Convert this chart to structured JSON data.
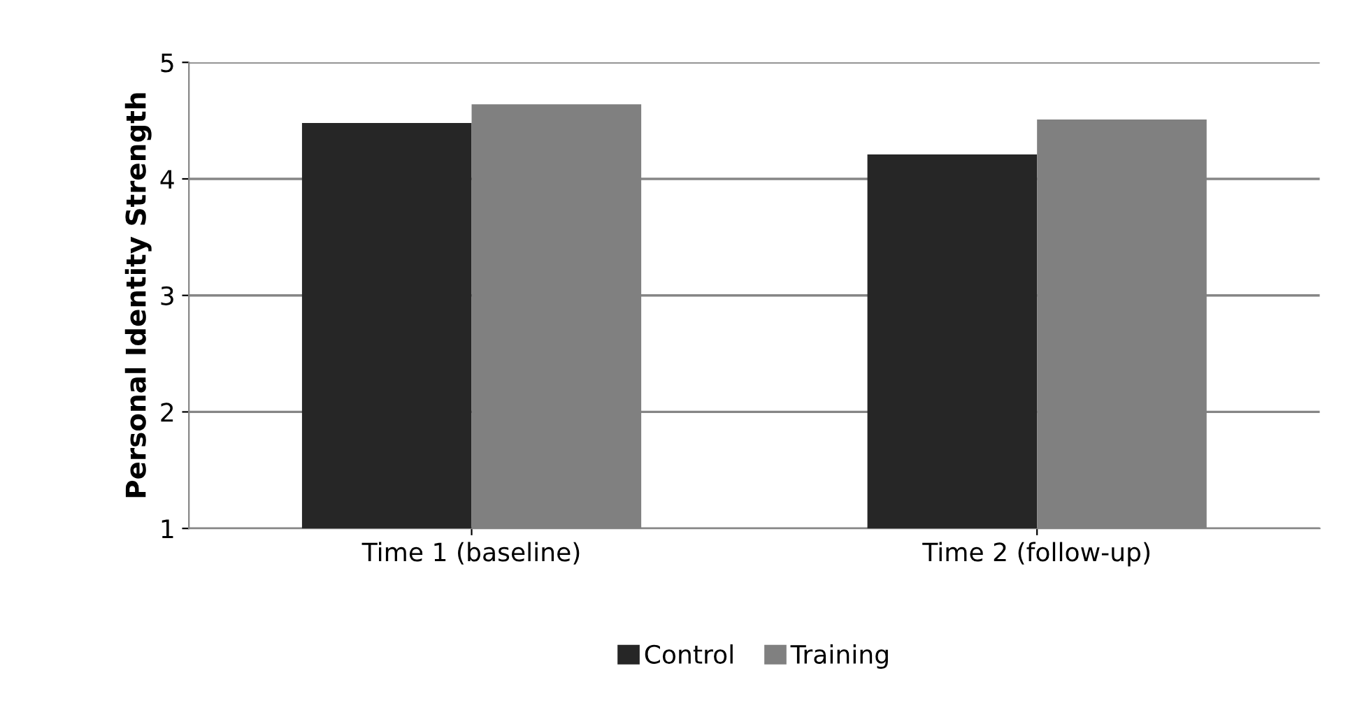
{
  "chart_data": {
    "type": "bar",
    "ylabel": "Personal Identity Strength",
    "categories": [
      "Time 1 (baseline)",
      "Time 2 (follow-up)"
    ],
    "series": [
      {
        "name": "Control",
        "color": "#262626",
        "values": [
          4.48,
          4.21
        ]
      },
      {
        "name": "Training",
        "color": "#808080",
        "values": [
          4.64,
          4.51
        ]
      }
    ],
    "ylim": [
      1,
      5
    ],
    "yticks": [
      1,
      2,
      3,
      4,
      5
    ],
    "grid": "y",
    "legend": "bottom"
  }
}
